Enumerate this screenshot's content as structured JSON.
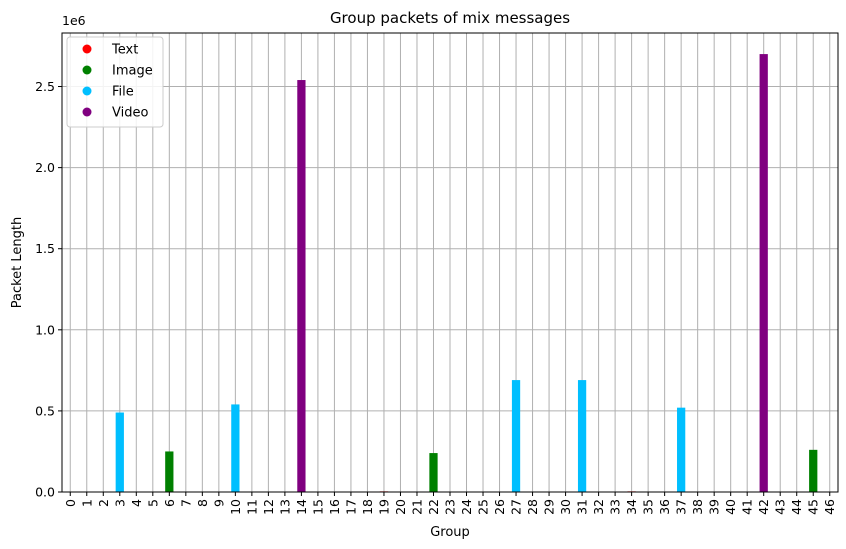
{
  "chart_data": {
    "type": "bar",
    "title": "Group packets of mix messages",
    "xlabel": "Group",
    "ylabel": "Packet Length",
    "y_multiplier_label": "1e6",
    "ylim": [
      0,
      2.83
    ],
    "yticks": [
      "0.0",
      "0.5",
      "1.0",
      "1.5",
      "2.0",
      "2.5"
    ],
    "grid": true,
    "legend_position": "top-left",
    "colors": {
      "Text": "#ff0000",
      "Image": "#008000",
      "File": "#00bfff",
      "Video": "#800080"
    },
    "legend": [
      "Text",
      "Image",
      "File",
      "Video"
    ],
    "categories": [
      "0",
      "1",
      "2",
      "3",
      "4",
      "5",
      "6",
      "7",
      "8",
      "9",
      "10",
      "11",
      "12",
      "13",
      "14",
      "15",
      "16",
      "17",
      "18",
      "19",
      "20",
      "21",
      "22",
      "23",
      "24",
      "25",
      "26",
      "27",
      "28",
      "29",
      "30",
      "31",
      "32",
      "33",
      "34",
      "35",
      "36",
      "37",
      "38",
      "39",
      "40",
      "41",
      "42",
      "43",
      "44",
      "45",
      "46"
    ],
    "values": [
      0.001,
      0.001,
      0.001,
      0.49,
      0.001,
      0.001,
      0.25,
      0.001,
      0.001,
      0.001,
      0.54,
      0.001,
      0.001,
      0.001,
      2.54,
      0.001,
      0.001,
      0.001,
      0.001,
      0.004,
      0.001,
      0.001,
      0.24,
      0.001,
      0.001,
      0.001,
      0.001,
      0.69,
      0.001,
      0.001,
      0.001,
      0.69,
      0.001,
      0.001,
      0.004,
      0.001,
      0.001,
      0.52,
      0.001,
      0.001,
      0.001,
      0.001,
      2.7,
      0.001,
      0.001,
      0.26,
      0.001
    ],
    "bar_types": [
      "Text",
      "Text",
      "Text",
      "File",
      "Text",
      "Text",
      "Image",
      "Text",
      "Text",
      "Text",
      "File",
      "Text",
      "Text",
      "Text",
      "Video",
      "Text",
      "Text",
      "Text",
      "Text",
      "Text",
      "Text",
      "Text",
      "Image",
      "Text",
      "Text",
      "Text",
      "Text",
      "File",
      "Text",
      "Text",
      "Text",
      "File",
      "Text",
      "Text",
      "Text",
      "Text",
      "Text",
      "File",
      "Text",
      "Text",
      "Text",
      "Text",
      "Video",
      "Text",
      "Text",
      "Image",
      "Text"
    ]
  }
}
